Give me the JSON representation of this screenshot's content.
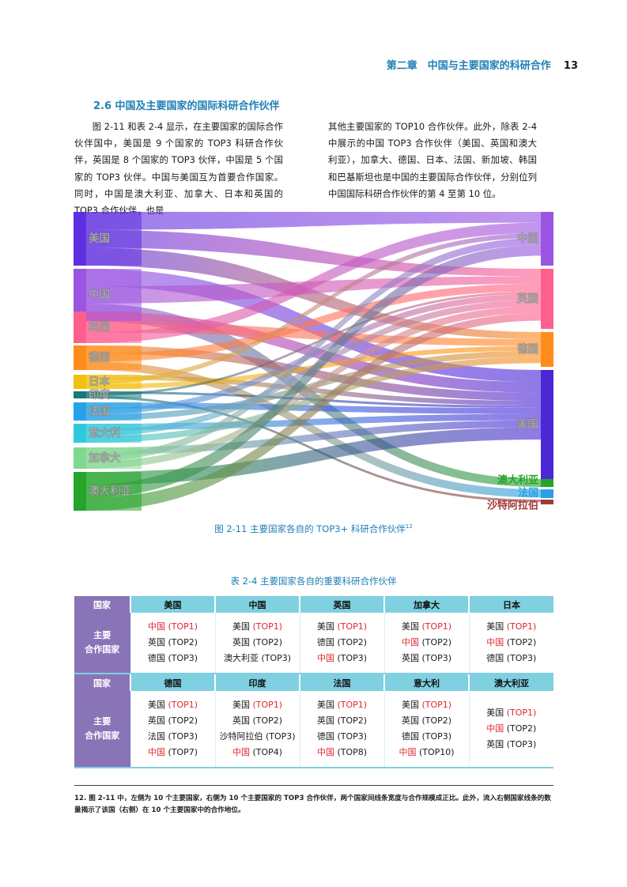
{
  "header": {
    "chapter": "第二章　中国与主要国家的科研合作",
    "page_number": "13"
  },
  "section": {
    "title": "2.6 中国及主要国家的国际科研合作伙伴"
  },
  "body": {
    "left_paragraph": "图 2-11 和表 2-4 显示，在主要国家的国际合作伙伴国中，美国是 9 个国家的 TOP3 科研合作伙伴，英国是 8 个国家的 TOP3 伙伴，中国是 5 个国家的 TOP3 伙伴。中国与美国互为首要合作国家。同时，中国是澳大利亚、加拿大、日本和英国的 TOP3 合作伙伴，也是",
    "right_paragraph": "其他主要国家的 TOP10 合作伙伴。此外，除表 2-4 中展示的中国 TOP3 合作伙伴（美国、英国和澳大利亚），加拿大、德国、日本、法国、新加坡、韩国和巴基斯坦也是中国的主要国际合作伙伴，分别位列中国国际科研合作伙伴的第 4 至第 10 位。"
  },
  "figure": {
    "caption": "图 2-11 主要国家各自的 TOP3+ 科研合作伙伴",
    "caption_note": "12",
    "left_nodes": [
      {
        "label": "美国",
        "color": "#5e2fe0"
      },
      {
        "label": "中国",
        "color": "#9a55e2"
      },
      {
        "label": "英国",
        "color": "#ff5f8f"
      },
      {
        "label": "德国",
        "color": "#ff8c1a"
      },
      {
        "label": "日本",
        "color": "#f2c10f"
      },
      {
        "label": "印度",
        "color": "#157a78"
      },
      {
        "label": "法国",
        "color": "#27a2e6"
      },
      {
        "label": "意大利",
        "color": "#2fc9dc"
      },
      {
        "label": "加拿大",
        "color": "#7fd88e"
      },
      {
        "label": "澳大利亚",
        "color": "#24a52a"
      }
    ],
    "right_nodes": [
      {
        "label": "中国",
        "color": "#9a55e2"
      },
      {
        "label": "英国",
        "color": "#ff5f8f"
      },
      {
        "label": "德国",
        "color": "#ff8c1a"
      },
      {
        "label": "美国",
        "color": "#4a28d8"
      },
      {
        "label": "澳大利亚",
        "color": "#24a52a"
      },
      {
        "label": "法国",
        "color": "#27a2e6"
      },
      {
        "label": "沙特阿拉伯",
        "color": "#a23a3a"
      }
    ]
  },
  "chart_data": {
    "type": "sankey",
    "links": [
      {
        "from": "美国",
        "to": "中国",
        "rank": "TOP1"
      },
      {
        "from": "美国",
        "to": "英国",
        "rank": "TOP2"
      },
      {
        "from": "美国",
        "to": "德国",
        "rank": "TOP3"
      },
      {
        "from": "中国",
        "to": "美国",
        "rank": "TOP1"
      },
      {
        "from": "中国",
        "to": "英国",
        "rank": "TOP2"
      },
      {
        "from": "中国",
        "to": "澳大利亚",
        "rank": "TOP3"
      },
      {
        "from": "英国",
        "to": "美国",
        "rank": "TOP1"
      },
      {
        "from": "英国",
        "to": "德国",
        "rank": "TOP2"
      },
      {
        "from": "英国",
        "to": "中国",
        "rank": "TOP3"
      },
      {
        "from": "德国",
        "to": "美国",
        "rank": "TOP1"
      },
      {
        "from": "德国",
        "to": "英国",
        "rank": "TOP2"
      },
      {
        "from": "德国",
        "to": "法国",
        "rank": "TOP3"
      },
      {
        "from": "日本",
        "to": "美国",
        "rank": "TOP1"
      },
      {
        "from": "日本",
        "to": "中国",
        "rank": "TOP2"
      },
      {
        "from": "日本",
        "to": "德国",
        "rank": "TOP3"
      },
      {
        "from": "印度",
        "to": "美国",
        "rank": "TOP1"
      },
      {
        "from": "印度",
        "to": "英国",
        "rank": "TOP2"
      },
      {
        "from": "印度",
        "to": "沙特阿拉伯",
        "rank": "TOP3"
      },
      {
        "from": "法国",
        "to": "美国",
        "rank": "TOP1"
      },
      {
        "from": "法国",
        "to": "英国",
        "rank": "TOP2"
      },
      {
        "from": "法国",
        "to": "德国",
        "rank": "TOP3"
      },
      {
        "from": "意大利",
        "to": "美国",
        "rank": "TOP1"
      },
      {
        "from": "意大利",
        "to": "英国",
        "rank": "TOP2"
      },
      {
        "from": "意大利",
        "to": "德国",
        "rank": "TOP3"
      },
      {
        "from": "加拿大",
        "to": "美国",
        "rank": "TOP1"
      },
      {
        "from": "加拿大",
        "to": "中国",
        "rank": "TOP2"
      },
      {
        "from": "加拿大",
        "to": "英国",
        "rank": "TOP3"
      },
      {
        "from": "澳大利亚",
        "to": "美国",
        "rank": "TOP1"
      },
      {
        "from": "澳大利亚",
        "to": "中国",
        "rank": "TOP2"
      },
      {
        "from": "澳大利亚",
        "to": "英国",
        "rank": "TOP3"
      }
    ]
  },
  "table": {
    "title": "表 2-4 主要国家各自的重要科研合作伙伴",
    "header_label": "国家",
    "row_label": "主要合作国家",
    "red_color": "#e0262e",
    "blocks": [
      {
        "countries": [
          "美国",
          "中国",
          "英国",
          "加拿大",
          "日本"
        ],
        "cells": [
          [
            {
              "name": "中国",
              "rank": "(TOP1)",
              "red_name": true,
              "red_rank": true
            },
            {
              "name": "英国",
              "rank": "(TOP2)"
            },
            {
              "name": "德国",
              "rank": "(TOP3)"
            }
          ],
          [
            {
              "name": "美国",
              "rank": "(TOP1)",
              "red_rank": true
            },
            {
              "name": "英国",
              "rank": "(TOP2)"
            },
            {
              "name": "澳大利亚",
              "rank": "(TOP3)"
            }
          ],
          [
            {
              "name": "美国",
              "rank": "(TOP1)",
              "red_rank": true
            },
            {
              "name": "德国",
              "rank": "(TOP2)"
            },
            {
              "name": "中国",
              "rank": "(TOP3)",
              "red_name": true
            }
          ],
          [
            {
              "name": "美国",
              "rank": "(TOP1)",
              "red_rank": true
            },
            {
              "name": "中国",
              "rank": "(TOP2)",
              "red_name": true
            },
            {
              "name": "英国",
              "rank": "(TOP3)"
            }
          ],
          [
            {
              "name": "美国",
              "rank": "(TOP1)",
              "red_rank": true
            },
            {
              "name": "中国",
              "rank": "(TOP2)",
              "red_name": true
            },
            {
              "name": "德国",
              "rank": "(TOP3)"
            }
          ]
        ]
      },
      {
        "countries": [
          "德国",
          "印度",
          "法国",
          "意大利",
          "澳大利亚"
        ],
        "cells": [
          [
            {
              "name": "美国",
              "rank": "(TOP1)",
              "red_rank": true
            },
            {
              "name": "英国",
              "rank": "(TOP2)"
            },
            {
              "name": "法国",
              "rank": "(TOP3)"
            },
            {
              "name": "中国",
              "rank": "(TOP7)",
              "red_name": true
            }
          ],
          [
            {
              "name": "美国",
              "rank": "(TOP1)",
              "red_rank": true
            },
            {
              "name": "英国",
              "rank": "(TOP2)"
            },
            {
              "name": "沙特阿拉伯",
              "rank": "(TOP3)"
            },
            {
              "name": "中国",
              "rank": "(TOP4)",
              "red_name": true
            }
          ],
          [
            {
              "name": "美国",
              "rank": "(TOP1)",
              "red_rank": true
            },
            {
              "name": "英国",
              "rank": "(TOP2)"
            },
            {
              "name": "德国",
              "rank": "(TOP3)"
            },
            {
              "name": "中国",
              "rank": "(TOP8)",
              "red_name": true
            }
          ],
          [
            {
              "name": "美国",
              "rank": "(TOP1)",
              "red_rank": true
            },
            {
              "name": "英国",
              "rank": "(TOP2)"
            },
            {
              "name": "德国",
              "rank": "(TOP3)"
            },
            {
              "name": "中国",
              "rank": "(TOP10)",
              "red_name": true
            }
          ],
          [
            {
              "name": "美国",
              "rank": "(TOP1)",
              "red_rank": true
            },
            {
              "name": "中国",
              "rank": "(TOP2)",
              "red_name": true
            },
            {
              "name": "英国",
              "rank": "(TOP3)"
            }
          ]
        ]
      }
    ]
  },
  "footnote": "12. 图 2-11 中，左侧为 10 个主要国家，右侧为 10 个主要国家的 TOP3 合作伙伴，两个国家间线条宽度与合作规模成正比。此外，流入右侧国家线条的数量揭示了该国（右侧）在 10 个主要国家中的合作地位。"
}
